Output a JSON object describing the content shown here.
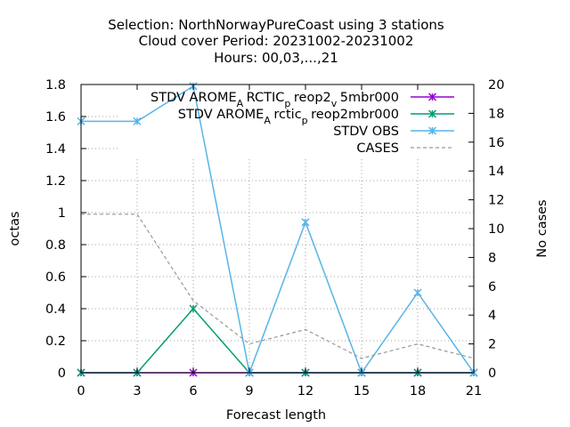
{
  "chart_data": {
    "type": "line",
    "title_lines": [
      "Selection: NorthNorwayPureCoast using     3 stations",
      "Cloud cover   Period: 20231002-20231002",
      "Hours:  00,03,...,21"
    ],
    "xlabel": "Forecast length",
    "ylabel": "octas",
    "y2label": "No cases",
    "x": [
      0,
      3,
      6,
      9,
      12,
      15,
      18,
      21
    ],
    "xlim": [
      0,
      21
    ],
    "ylim": [
      0,
      1.8
    ],
    "y2lim": [
      0,
      20
    ],
    "xticks": [
      "0",
      "3",
      "6",
      "9",
      "12",
      "15",
      "18",
      "21"
    ],
    "yticks": [
      "0",
      "0.2",
      "0.4",
      "0.6",
      "0.8",
      "1",
      "1.2",
      "1.4",
      "1.6",
      "1.8"
    ],
    "y2ticks": [
      "0",
      "2",
      "4",
      "6",
      "8",
      "10",
      "12",
      "14",
      "16",
      "18",
      "20"
    ],
    "grid": true,
    "legend_position": "top-right",
    "series": [
      {
        "legend": [
          "STDV AROME",
          "A",
          "RCTIC",
          "p",
          "reop2",
          "v",
          "5mbr000"
        ],
        "values": [
          0,
          0,
          0,
          0,
          0,
          0,
          0,
          0
        ],
        "axis": "y1",
        "color": "#9400d3",
        "marker": "x"
      },
      {
        "legend": [
          "STDV AROME",
          "A",
          "rctic",
          "p",
          "reop2mbr000"
        ],
        "values": [
          0,
          0,
          0.4,
          0,
          0,
          0,
          0,
          0
        ],
        "axis": "y1",
        "color": "#009e73",
        "marker": "x"
      },
      {
        "legend": [
          "STDV OBS"
        ],
        "values": [
          1.57,
          1.57,
          1.79,
          0,
          0.94,
          0,
          0.5,
          0
        ],
        "axis": "y1",
        "color": "#56b4e9",
        "marker": "x"
      },
      {
        "legend": [
          "CASES"
        ],
        "values": [
          11,
          11,
          5,
          2,
          3,
          1,
          2,
          1
        ],
        "axis": "y2",
        "color": "#999999",
        "dashed": true
      }
    ]
  }
}
